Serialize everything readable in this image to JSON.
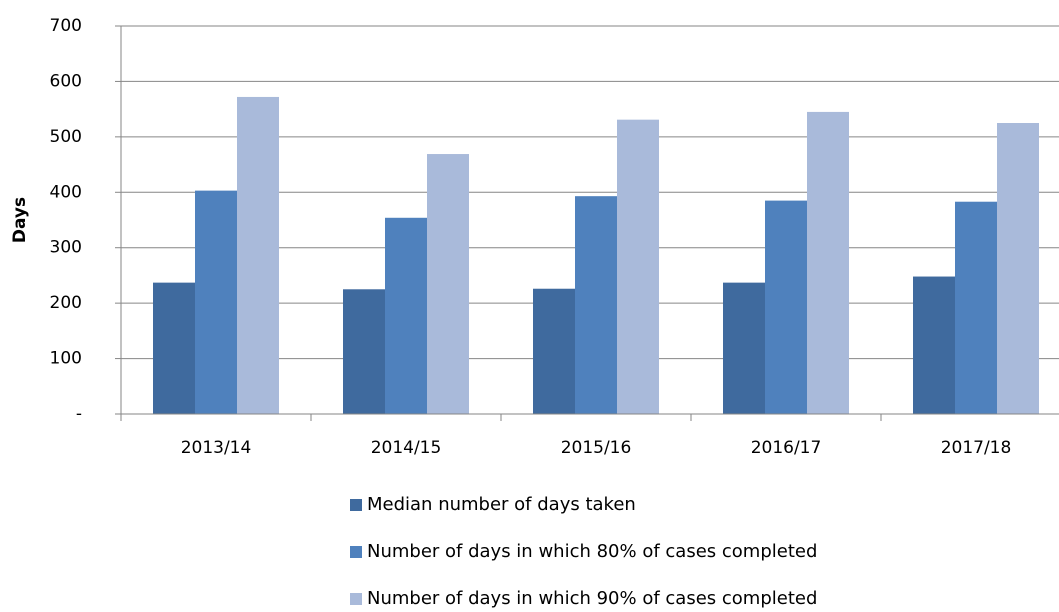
{
  "chart_data": {
    "type": "bar",
    "y_label": "Days",
    "categories": [
      "2013/14",
      "2014/15",
      "2015/16",
      "2016/17",
      "2017/18"
    ],
    "series": [
      {
        "name": "Median number of days taken",
        "color": "#3F6A9E",
        "values": [
          237,
          225,
          226,
          237,
          248
        ]
      },
      {
        "name": "Number of days in which 80% of cases completed",
        "color": "#4F81BD",
        "values": [
          403,
          354,
          393,
          385,
          383
        ]
      },
      {
        "name": "Number of days in which 90% of cases completed",
        "color": "#A9BADA",
        "values": [
          572,
          469,
          531,
          545,
          525
        ]
      }
    ],
    "ylim": [
      0,
      700
    ],
    "yticks": [
      {
        "value": 0,
        "label": "-"
      },
      100,
      200,
      300,
      400,
      500,
      600,
      700
    ],
    "grid": true,
    "legend": "bottom"
  }
}
